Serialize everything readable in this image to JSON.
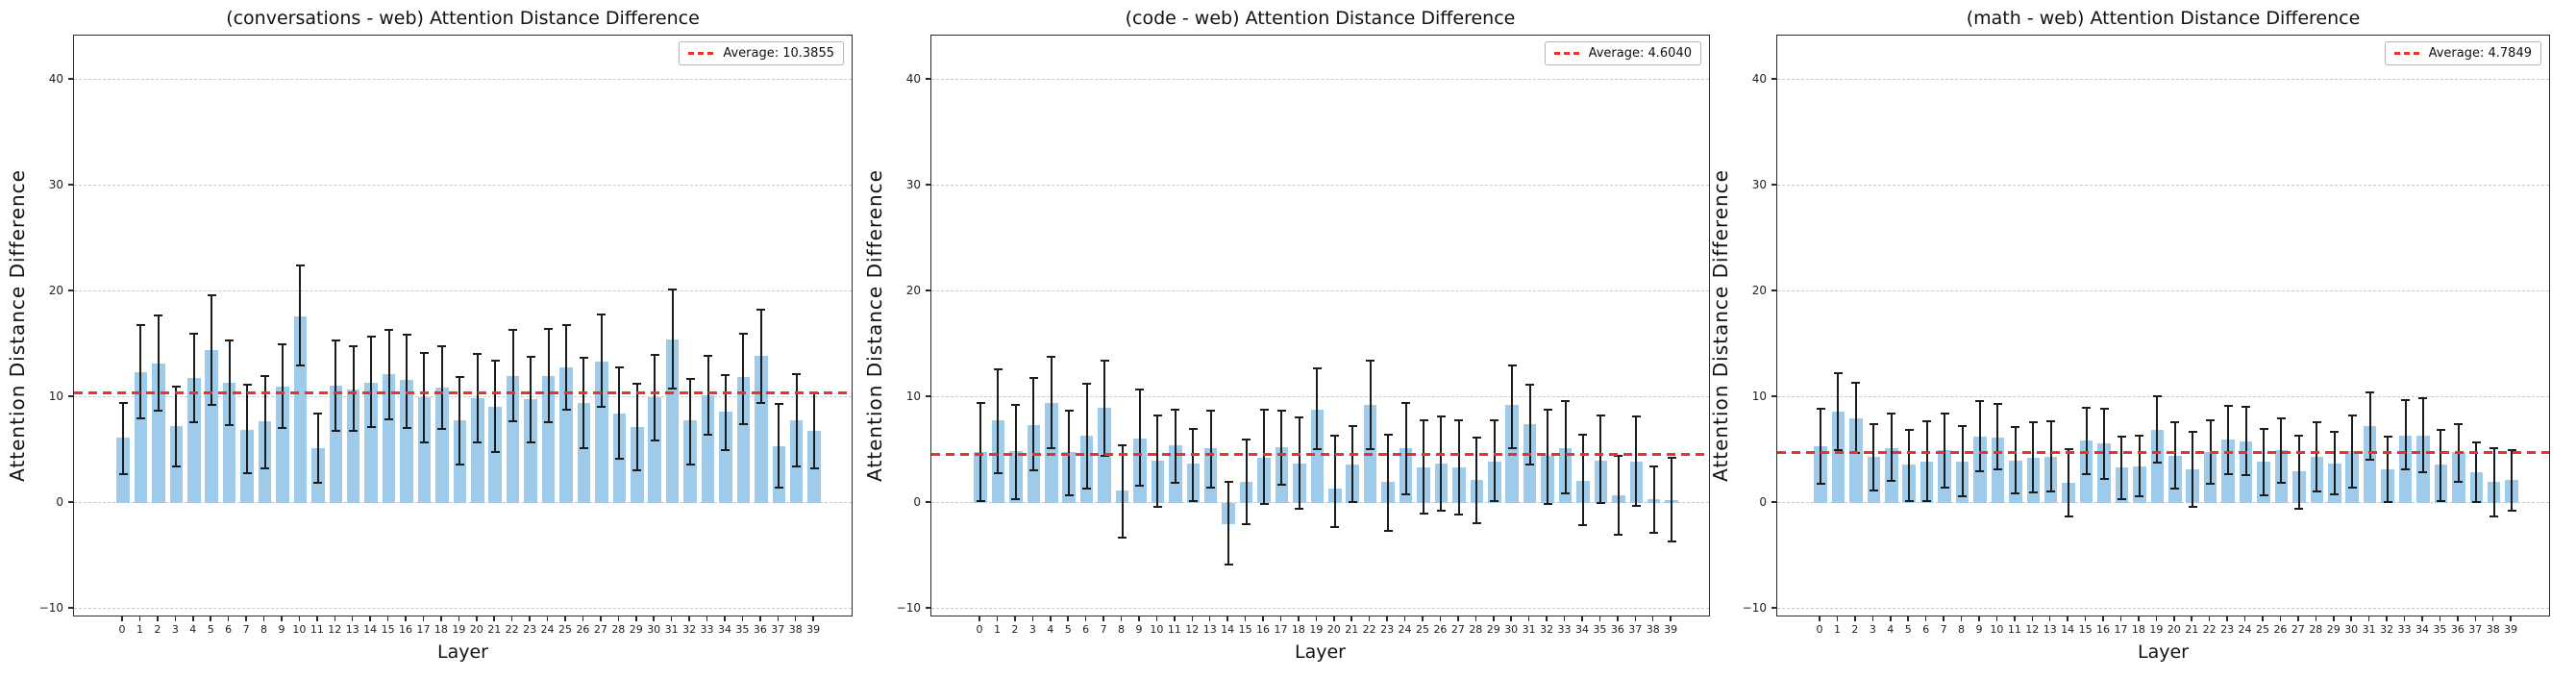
{
  "style": {
    "bar_color": "#9dcbe9",
    "error_color": "#1c1c1c",
    "average_line_color": "#ee3124",
    "grid_color": "#c9c9c9",
    "spine_color": "#2b2b2b",
    "background": "#ffffff",
    "text_color": "#111111"
  },
  "chart_data": [
    {
      "type": "bar",
      "title": "(conversations - web) Attention Distance Difference",
      "xlabel": "Layer",
      "ylabel": "Attention Distance Difference",
      "legend": {
        "label": "Average: 10.3855",
        "position": "upper right",
        "swatch": "red-dashed-line"
      },
      "average": 10.3855,
      "grid": "horizontal-dashed",
      "yticks": [
        40,
        30,
        20,
        10,
        0,
        -10
      ],
      "ylim": [
        -10.8,
        44.1
      ],
      "x": [
        0,
        1,
        2,
        3,
        4,
        5,
        6,
        7,
        8,
        9,
        10,
        11,
        12,
        13,
        14,
        15,
        16,
        17,
        18,
        19,
        20,
        21,
        22,
        23,
        24,
        25,
        26,
        27,
        28,
        29,
        30,
        31,
        32,
        33,
        34,
        35,
        36,
        37,
        38,
        39
      ],
      "values": [
        6.2,
        12.4,
        13.2,
        7.3,
        11.8,
        14.5,
        11.4,
        6.9,
        7.7,
        11.0,
        17.6,
        5.2,
        11.1,
        10.7,
        11.4,
        12.2,
        11.6,
        10.0,
        10.9,
        7.8,
        9.9,
        9.1,
        12.0,
        9.8,
        12.0,
        12.8,
        9.5,
        13.4,
        8.5,
        7.2,
        10.0,
        15.5,
        7.8,
        10.2,
        8.6,
        11.9,
        13.9,
        5.4,
        7.8,
        6.8
      ],
      "err_low": [
        2.7,
        8.0,
        8.7,
        3.5,
        7.6,
        9.3,
        7.4,
        2.8,
        3.3,
        7.1,
        13.0,
        1.9,
        6.8,
        6.8,
        7.2,
        7.9,
        7.1,
        5.7,
        7.0,
        3.6,
        5.7,
        4.8,
        7.7,
        5.7,
        7.6,
        8.8,
        5.2,
        9.1,
        4.2,
        3.1,
        5.9,
        10.8,
        3.6,
        6.5,
        5.0,
        7.5,
        9.5,
        1.5,
        3.5,
        3.3
      ],
      "err_high": [
        9.5,
        16.8,
        17.7,
        11.0,
        16.0,
        19.6,
        15.4,
        11.2,
        12.0,
        15.0,
        22.5,
        8.5,
        15.4,
        14.8,
        15.7,
        16.4,
        15.9,
        14.2,
        14.8,
        11.9,
        14.1,
        13.5,
        16.4,
        13.8,
        16.5,
        16.8,
        13.7,
        17.8,
        12.8,
        11.3,
        14.0,
        20.2,
        11.7,
        13.9,
        12.1,
        16.0,
        18.3,
        9.4,
        12.2,
        10.4
      ]
    },
    {
      "type": "bar",
      "title": "(code - web) Attention Distance Difference",
      "xlabel": "Layer",
      "ylabel": "Attention Distance Difference",
      "legend": {
        "label": "Average: 4.6040",
        "position": "upper right",
        "swatch": "red-dashed-line"
      },
      "average": 4.604,
      "grid": "horizontal-dashed",
      "yticks": [
        40,
        30,
        20,
        10,
        0,
        -10
      ],
      "ylim": [
        -10.8,
        44.1
      ],
      "x": [
        0,
        1,
        2,
        3,
        4,
        5,
        6,
        7,
        8,
        9,
        10,
        11,
        12,
        13,
        14,
        15,
        16,
        17,
        18,
        19,
        20,
        21,
        22,
        23,
        24,
        25,
        26,
        27,
        28,
        29,
        30,
        31,
        32,
        33,
        34,
        35,
        36,
        37,
        38,
        39
      ],
      "values": [
        4.8,
        7.8,
        4.9,
        7.4,
        9.5,
        4.8,
        6.4,
        9.0,
        1.2,
        6.1,
        4.0,
        5.5,
        3.7,
        5.2,
        -2.0,
        2.0,
        4.3,
        5.3,
        3.7,
        8.8,
        1.4,
        3.6,
        9.3,
        2.0,
        5.2,
        3.4,
        3.7,
        3.4,
        2.2,
        3.9,
        9.3,
        7.5,
        4.5,
        5.2,
        2.1,
        4.0,
        0.7,
        3.9,
        0.4,
        0.3
      ],
      "err_low": [
        0.2,
        2.8,
        0.4,
        3.1,
        5.2,
        0.7,
        1.4,
        4.5,
        -3.3,
        1.6,
        -0.4,
        1.9,
        0.2,
        1.5,
        -5.8,
        -2.0,
        -0.1,
        1.7,
        -0.5,
        5.1,
        -2.3,
        0.1,
        5.1,
        -2.6,
        0.8,
        -1.0,
        -0.7,
        -1.1,
        -1.9,
        0.2,
        5.2,
        3.6,
        -0.1,
        0.9,
        -2.1,
        0.0,
        -3.0,
        -0.3,
        -2.8,
        -3.6
      ],
      "err_high": [
        9.5,
        12.6,
        9.3,
        11.8,
        13.8,
        8.7,
        11.3,
        13.5,
        5.5,
        10.7,
        8.3,
        8.8,
        7.0,
        8.7,
        2.0,
        6.0,
        8.8,
        8.7,
        8.1,
        12.7,
        6.4,
        7.3,
        13.5,
        6.5,
        9.5,
        7.8,
        8.2,
        7.8,
        6.2,
        7.8,
        13.0,
        11.2,
        8.8,
        9.6,
        6.5,
        8.3,
        4.5,
        8.2,
        3.5,
        4.3
      ]
    },
    {
      "type": "bar",
      "title": "(math - web) Attention Distance Difference",
      "xlabel": "Layer",
      "ylabel": "Attention Distance Difference",
      "legend": {
        "label": "Average: 4.7849",
        "position": "upper right",
        "swatch": "red-dashed-line"
      },
      "average": 4.7849,
      "grid": "horizontal-dashed",
      "yticks": [
        40,
        30,
        20,
        10,
        0,
        -10
      ],
      "ylim": [
        -10.8,
        44.1
      ],
      "x": [
        0,
        1,
        2,
        3,
        4,
        5,
        6,
        7,
        8,
        9,
        10,
        11,
        12,
        13,
        14,
        15,
        16,
        17,
        18,
        19,
        20,
        21,
        22,
        23,
        24,
        25,
        26,
        27,
        28,
        29,
        30,
        31,
        32,
        33,
        34,
        35,
        36,
        37,
        38,
        39
      ],
      "values": [
        5.4,
        8.6,
        8.0,
        4.4,
        5.2,
        3.6,
        3.9,
        5.0,
        3.9,
        6.3,
        6.2,
        4.0,
        4.3,
        4.4,
        1.9,
        5.9,
        5.6,
        3.4,
        3.5,
        6.9,
        4.5,
        3.2,
        4.8,
        6.0,
        5.8,
        3.9,
        5.0,
        3.0,
        4.4,
        3.7,
        4.9,
        7.3,
        3.2,
        6.4,
        6.4,
        3.6,
        4.8,
        2.9,
        2.0,
        2.2
      ],
      "err_low": [
        1.8,
        5.0,
        4.7,
        1.2,
        2.1,
        0.2,
        0.2,
        1.5,
        0.6,
        3.0,
        3.2,
        0.9,
        1.0,
        1.1,
        -1.3,
        2.7,
        2.3,
        0.4,
        0.6,
        3.8,
        1.4,
        -0.4,
        1.8,
        2.7,
        2.6,
        0.7,
        1.9,
        -0.5,
        1.1,
        0.8,
        1.5,
        4.1,
        0.1,
        3.2,
        2.9,
        0.2,
        2.0,
        0.1,
        -1.3,
        -0.7
      ],
      "err_high": [
        8.9,
        12.3,
        11.4,
        7.5,
        8.5,
        6.9,
        7.7,
        8.5,
        7.3,
        9.6,
        9.4,
        7.2,
        7.6,
        7.7,
        5.1,
        9.0,
        8.9,
        6.3,
        6.4,
        10.1,
        7.6,
        6.7,
        7.8,
        9.2,
        9.1,
        7.0,
        8.0,
        6.4,
        7.6,
        6.7,
        8.3,
        10.5,
        6.3,
        9.7,
        9.9,
        6.9,
        7.5,
        5.7,
        5.2,
        5.0
      ]
    }
  ]
}
